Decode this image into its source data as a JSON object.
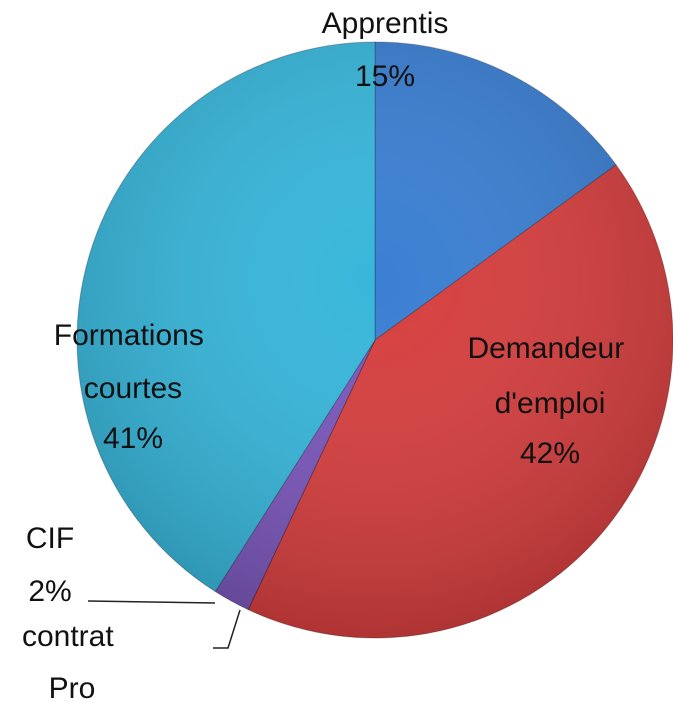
{
  "chart_data": {
    "type": "pie",
    "categories": [
      "Apprentis",
      "Demandeur d'emploi",
      "contrat Pro",
      "CIF",
      "Formations courtes"
    ],
    "values": [
      15,
      42,
      0,
      2,
      41
    ],
    "value_labels": [
      "15%",
      "42%",
      null,
      "2%",
      "41%"
    ],
    "colors": [
      "#3b7fd2",
      "#d63f3f",
      "#8a3fb0",
      "#7b57bb",
      "#38b6da"
    ]
  }
}
